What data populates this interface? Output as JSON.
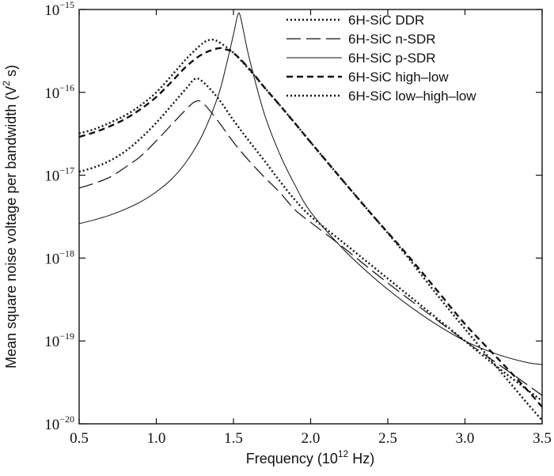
{
  "chart_data": {
    "type": "line",
    "title": "",
    "xlabel": {
      "prefix": "Frequency (10",
      "sup": "12",
      "suffix": " Hz)"
    },
    "ylabel": {
      "prefix": "Mean square noise voltage per bandwidth (V",
      "sup": "2",
      "suffix": " s)"
    },
    "xlim": [
      0.5,
      3.5
    ],
    "ylim": [
      1e-20,
      1e-15
    ],
    "y_scale": "log",
    "grid": false,
    "legend_position": "top-right",
    "x_ticks": [
      "0.5",
      "1.0",
      "1.5",
      "2.0",
      "2.5",
      "3.0",
      "3.5"
    ],
    "y_ticks": [
      {
        "base": "10",
        "exp": "−15"
      },
      {
        "base": "10",
        "exp": "−16"
      },
      {
        "base": "10",
        "exp": "−17"
      },
      {
        "base": "10",
        "exp": "−18"
      },
      {
        "base": "10",
        "exp": "−19"
      },
      {
        "base": "10",
        "exp": "−20"
      }
    ],
    "series": [
      {
        "name": "6H-SiC DDR",
        "style": "dotted",
        "x": [
          0.5,
          0.6,
          0.7,
          0.8,
          0.9,
          1.0,
          1.1,
          1.2,
          1.3,
          1.35,
          1.4,
          1.5,
          1.6,
          1.7,
          1.8,
          1.9,
          2.0,
          2.2,
          2.4,
          2.6,
          2.8,
          3.0,
          3.2,
          3.4,
          3.5
        ],
        "y": [
          3.2e-17,
          3.6e-17,
          4.3e-17,
          5.3e-17,
          7e-17,
          1e-16,
          1.6e-16,
          2.6e-16,
          3.9e-16,
          4.3e-16,
          4.1e-16,
          3e-16,
          1.9e-16,
          1.15e-16,
          7e-17,
          4.2e-17,
          2.5e-17,
          9e-18,
          3.3e-18,
          1.2e-18,
          4e-19,
          1.4e-19,
          5e-20,
          1.8e-20,
          1.1e-20
        ]
      },
      {
        "name": "6H-SiC n-SDR",
        "style": "long-dash",
        "x": [
          0.5,
          0.6,
          0.7,
          0.8,
          0.9,
          1.0,
          1.1,
          1.2,
          1.25,
          1.3,
          1.4,
          1.5,
          1.6,
          1.7,
          1.8,
          1.9,
          2.0,
          2.2,
          2.4,
          2.6,
          2.8,
          3.0,
          3.2,
          3.4,
          3.5
        ],
        "y": [
          7e-18,
          8e-18,
          9.5e-18,
          1.25e-17,
          1.7e-17,
          2.6e-17,
          4.1e-17,
          6.4e-17,
          7.7e-17,
          7.5e-17,
          4.5e-17,
          2.5e-17,
          1.5e-17,
          9.5e-18,
          6.2e-18,
          3.8e-18,
          2.7e-18,
          1.4e-18,
          7e-19,
          3.6e-19,
          1.9e-19,
          1e-19,
          5.5e-20,
          3e-20,
          2.2e-20
        ]
      },
      {
        "name": "6H-SiC p-SDR",
        "style": "solid-thin",
        "x": [
          0.5,
          0.6,
          0.7,
          0.8,
          0.9,
          1.0,
          1.1,
          1.2,
          1.3,
          1.4,
          1.45,
          1.5,
          1.53,
          1.55,
          1.6,
          1.7,
          1.8,
          1.9,
          2.0,
          2.2,
          2.4,
          2.6,
          2.8,
          3.0,
          3.2,
          3.4,
          3.5
        ],
        "y": [
          2.6e-18,
          2.9e-18,
          3.3e-18,
          3.9e-18,
          4.8e-18,
          6.3e-18,
          9e-18,
          1.5e-17,
          3.1e-17,
          9e-17,
          2e-16,
          5e-16,
          8.8e-16,
          7.5e-16,
          2.7e-16,
          5.5e-17,
          1.8e-17,
          7.5e-18,
          3.6e-18,
          1.35e-18,
          6e-19,
          3e-19,
          1.65e-19,
          1e-19,
          7e-20,
          5.5e-20,
          5.2e-20
        ]
      },
      {
        "name": "6H-SiC high–low",
        "style": "short-dash",
        "x": [
          0.5,
          0.6,
          0.7,
          0.8,
          0.9,
          1.0,
          1.1,
          1.2,
          1.3,
          1.4,
          1.45,
          1.5,
          1.6,
          1.7,
          1.8,
          1.9,
          2.0,
          2.2,
          2.4,
          2.6,
          2.8,
          3.0,
          3.2,
          3.4,
          3.5
        ],
        "y": [
          2.9e-17,
          3.3e-17,
          3.9e-17,
          4.8e-17,
          6.3e-17,
          8.8e-17,
          1.35e-16,
          2.1e-16,
          2.9e-16,
          3.4e-16,
          3.3e-16,
          3e-16,
          1.95e-16,
          1.15e-16,
          7e-17,
          4.2e-17,
          2.5e-17,
          9e-18,
          3.3e-18,
          1.25e-18,
          4.5e-19,
          1.6e-19,
          6.5e-20,
          2.6e-20,
          1.6e-20
        ]
      },
      {
        "name": "6H-SiC low–high–low",
        "style": "dotted",
        "x": [
          0.5,
          0.6,
          0.7,
          0.8,
          0.9,
          1.0,
          1.1,
          1.2,
          1.25,
          1.3,
          1.4,
          1.5,
          1.6,
          1.7,
          1.8,
          1.9,
          2.0,
          2.2,
          2.4,
          2.6,
          2.8,
          3.0,
          3.2,
          3.4,
          3.5
        ],
        "y": [
          1.1e-17,
          1.25e-17,
          1.5e-17,
          1.95e-17,
          2.8e-17,
          4.3e-17,
          7e-17,
          1.15e-16,
          1.45e-16,
          1.35e-16,
          8.5e-17,
          4.6e-17,
          2.6e-17,
          1.5e-17,
          8.5e-18,
          5e-18,
          3.2e-18,
          1.6e-18,
          8e-19,
          4e-19,
          2e-19,
          1e-19,
          5e-20,
          2.6e-20,
          1.9e-20
        ]
      }
    ]
  }
}
